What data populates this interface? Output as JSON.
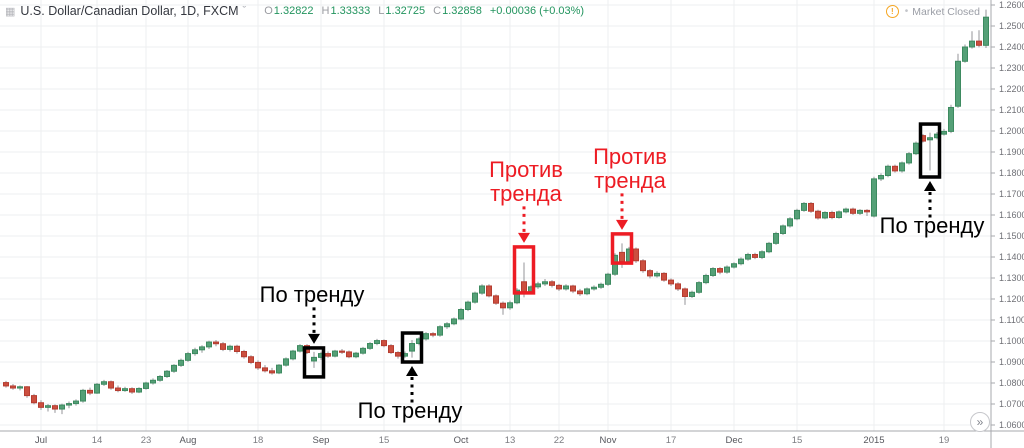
{
  "header": {
    "title": "U.S. Dollar/Canadian Dollar, 1D, FXCM",
    "ohlc": [
      {
        "label": "O",
        "value": "1.32822"
      },
      {
        "label": "H",
        "value": "1.33333"
      },
      {
        "label": "L",
        "value": "1.32725"
      },
      {
        "label": "C",
        "value": "1.32858"
      }
    ],
    "change": "+0.00036 (+0.03%)",
    "market_status": "Market Closed"
  },
  "colors": {
    "up": "#55a077",
    "up_border": "#3d8a60",
    "down": "#cc4f3f",
    "down_border": "#b43d31",
    "wick": "#94959a",
    "grid": "#eeeff1",
    "axis_line": "#a7a8ad",
    "axis_text": "#6f7076",
    "month_text": "#56575d",
    "day_text": "#7c7d82",
    "quote_green": "#22945e",
    "annotation_red": "#ed1c24",
    "annotation_black": "#000000",
    "market_warn": "#f5a623"
  },
  "footer": {
    "scroll_icon": "»"
  },
  "chart_data": {
    "type": "candlestick",
    "title": "U.S. Dollar/Canadian Dollar, 1D, FXCM",
    "symbol": "U.S. Dollar/Canadian Dollar",
    "interval": "1D",
    "exchange": "FXCM",
    "y_axis": {
      "min": 1.06,
      "max": 1.26,
      "step": 0.01,
      "labels": [
        "1.26000",
        "1.25000",
        "1.24000",
        "1.23000",
        "1.22000",
        "1.21000",
        "1.20000",
        "1.19000",
        "1.18000",
        "1.17000",
        "1.16000",
        "1.15000",
        "1.14000",
        "1.13000",
        "1.12000",
        "1.11000",
        "1.10000",
        "1.09000",
        "1.08000",
        "1.07000",
        "1.06000"
      ]
    },
    "x_ticks": [
      {
        "index": 5,
        "label": "Jul",
        "kind": "major"
      },
      {
        "index": 13,
        "label": "14",
        "kind": "day"
      },
      {
        "index": 20,
        "label": "23",
        "kind": "day"
      },
      {
        "index": 26,
        "label": "Aug",
        "kind": "major"
      },
      {
        "index": 36,
        "label": "18",
        "kind": "day"
      },
      {
        "index": 45,
        "label": "Sep",
        "kind": "major"
      },
      {
        "index": 54,
        "label": "15",
        "kind": "day"
      },
      {
        "index": 65,
        "label": "Oct",
        "kind": "major"
      },
      {
        "index": 72,
        "label": "13",
        "kind": "day"
      },
      {
        "index": 79,
        "label": "22",
        "kind": "day"
      },
      {
        "index": 86,
        "label": "Nov",
        "kind": "major"
      },
      {
        "index": 95,
        "label": "17",
        "kind": "day"
      },
      {
        "index": 104,
        "label": "Dec",
        "kind": "major"
      },
      {
        "index": 113,
        "label": "15",
        "kind": "day"
      },
      {
        "index": 124,
        "label": "2015",
        "kind": "major"
      },
      {
        "index": 134,
        "label": "19",
        "kind": "day"
      }
    ],
    "candles": [
      [
        1.0802,
        1.081,
        1.0778,
        1.0786
      ],
      [
        1.0786,
        1.0795,
        1.0768,
        1.0776
      ],
      [
        1.0776,
        1.0788,
        1.0765,
        1.0782
      ],
      [
        1.0782,
        1.0785,
        1.073,
        1.074
      ],
      [
        1.074,
        1.0748,
        1.0698,
        1.0706
      ],
      [
        1.0706,
        1.0718,
        1.0672,
        1.0684
      ],
      [
        1.0684,
        1.07,
        1.0664,
        1.0692
      ],
      [
        1.0692,
        1.0698,
        1.0658,
        1.0676
      ],
      [
        1.0676,
        1.0702,
        1.0652,
        1.0695
      ],
      [
        1.0695,
        1.0712,
        1.068,
        1.0702
      ],
      [
        1.0702,
        1.0722,
        1.0692,
        1.0714
      ],
      [
        1.0714,
        1.0772,
        1.0706,
        1.0765
      ],
      [
        1.0765,
        1.0778,
        1.0742,
        1.0752
      ],
      [
        1.0752,
        1.08,
        1.0748,
        1.0794
      ],
      [
        1.0794,
        1.0815,
        1.0786,
        1.0806
      ],
      [
        1.0806,
        1.0812,
        1.0768,
        1.0776
      ],
      [
        1.0776,
        1.0788,
        1.0756,
        1.0764
      ],
      [
        1.0764,
        1.0782,
        1.0758,
        1.0773
      ],
      [
        1.0773,
        1.078,
        1.0748,
        1.0757
      ],
      [
        1.0757,
        1.078,
        1.0752,
        1.0774
      ],
      [
        1.0774,
        1.0806,
        1.0768,
        1.08
      ],
      [
        1.08,
        1.0822,
        1.0792,
        1.0813
      ],
      [
        1.0813,
        1.0838,
        1.0806,
        1.0831
      ],
      [
        1.0831,
        1.0862,
        1.0824,
        1.0856
      ],
      [
        1.0856,
        1.089,
        1.0848,
        1.0884
      ],
      [
        1.0884,
        1.0916,
        1.0876,
        1.0908
      ],
      [
        1.0908,
        1.0948,
        1.09,
        1.094
      ],
      [
        1.094,
        1.0968,
        1.093,
        1.0958
      ],
      [
        1.0958,
        1.098,
        1.0944,
        1.0972
      ],
      [
        1.0972,
        1.1002,
        1.0962,
        1.0995
      ],
      [
        1.0995,
        1.1005,
        1.0975,
        1.0987
      ],
      [
        1.0987,
        1.0995,
        1.0952,
        1.096
      ],
      [
        1.096,
        1.0982,
        1.095,
        1.0975
      ],
      [
        1.0975,
        1.0982,
        1.094,
        1.095
      ],
      [
        1.095,
        1.0958,
        1.0916,
        1.0925
      ],
      [
        1.0925,
        1.0932,
        1.089,
        1.0898
      ],
      [
        1.0898,
        1.0908,
        1.0862,
        1.0872
      ],
      [
        1.0872,
        1.0885,
        1.085,
        1.0858
      ],
      [
        1.0858,
        1.0872,
        1.084,
        1.0848
      ],
      [
        1.0848,
        1.089,
        1.0842,
        1.0885
      ],
      [
        1.0885,
        1.0922,
        1.0878,
        1.0915
      ],
      [
        1.0915,
        1.0958,
        1.0908,
        1.0952
      ],
      [
        1.0952,
        1.0985,
        1.0945,
        1.0978
      ],
      [
        1.0978,
        1.0985,
        1.0938,
        1.0945
      ],
      [
        1.0905,
        1.0948,
        1.0872,
        1.0922
      ],
      [
        1.0922,
        1.0948,
        1.091,
        1.094
      ],
      [
        1.094,
        1.095,
        1.092,
        1.0928
      ],
      [
        1.0928,
        1.0958,
        1.0922,
        1.0952
      ],
      [
        1.0952,
        1.0962,
        1.0938,
        1.0948
      ],
      [
        1.0948,
        1.0955,
        1.0918,
        1.0925
      ],
      [
        1.0925,
        1.0948,
        1.0918,
        1.0942
      ],
      [
        1.0942,
        1.0972,
        1.0935,
        1.0965
      ],
      [
        1.0965,
        1.0995,
        1.0958,
        1.0988
      ],
      [
        1.0988,
        1.101,
        1.098,
        1.1002
      ],
      [
        1.1002,
        1.1008,
        1.097,
        1.0978
      ],
      [
        1.0978,
        1.0985,
        1.0938,
        1.0945
      ],
      [
        1.0945,
        1.0952,
        1.0916,
        1.0928
      ],
      [
        1.0928,
        1.095,
        1.092,
        1.094
      ],
      [
        1.0952,
        1.1005,
        1.0921,
        1.0988
      ],
      [
        1.0988,
        1.1018,
        1.098,
        1.101
      ],
      [
        1.101,
        1.1042,
        1.1002,
        1.1035
      ],
      [
        1.1035,
        1.1042,
        1.1018,
        1.1028
      ],
      [
        1.1028,
        1.1075,
        1.102,
        1.1068
      ],
      [
        1.1068,
        1.109,
        1.1058,
        1.1082
      ],
      [
        1.1082,
        1.1112,
        1.1075,
        1.1105
      ],
      [
        1.1105,
        1.1158,
        1.1098,
        1.115
      ],
      [
        1.115,
        1.1192,
        1.1142,
        1.1185
      ],
      [
        1.1185,
        1.1235,
        1.1178,
        1.1228
      ],
      [
        1.1228,
        1.127,
        1.122,
        1.1262
      ],
      [
        1.1262,
        1.127,
        1.1208,
        1.1215
      ],
      [
        1.1215,
        1.1222,
        1.1172,
        1.118
      ],
      [
        1.118,
        1.1188,
        1.1125,
        1.1158
      ],
      [
        1.1158,
        1.1192,
        1.1148,
        1.1182
      ],
      [
        1.1182,
        1.1252,
        1.1175,
        1.1242
      ],
      [
        1.1282,
        1.1374,
        1.1208,
        1.1236
      ],
      [
        1.1236,
        1.1265,
        1.1228,
        1.1258
      ],
      [
        1.1258,
        1.1282,
        1.1248,
        1.1272
      ],
      [
        1.1272,
        1.1295,
        1.1262,
        1.1282
      ],
      [
        1.1282,
        1.129,
        1.1255,
        1.1265
      ],
      [
        1.1265,
        1.1272,
        1.1238,
        1.1248
      ],
      [
        1.1248,
        1.127,
        1.124,
        1.1262
      ],
      [
        1.1262,
        1.1268,
        1.1228,
        1.1238
      ],
      [
        1.1238,
        1.1248,
        1.1215,
        1.1225
      ],
      [
        1.1225,
        1.1255,
        1.1218,
        1.1248
      ],
      [
        1.1248,
        1.1265,
        1.124,
        1.1256
      ],
      [
        1.1256,
        1.1278,
        1.1248,
        1.127
      ],
      [
        1.127,
        1.1325,
        1.1262,
        1.1318
      ],
      [
        1.1318,
        1.1418,
        1.131,
        1.1408
      ],
      [
        1.1422,
        1.1465,
        1.1348,
        1.1378
      ],
      [
        1.1378,
        1.1448,
        1.137,
        1.1438
      ],
      [
        1.1438,
        1.1445,
        1.1372,
        1.1382
      ],
      [
        1.1382,
        1.139,
        1.1325,
        1.1335
      ],
      [
        1.1335,
        1.1342,
        1.1298,
        1.131
      ],
      [
        1.131,
        1.1332,
        1.1302,
        1.1322
      ],
      [
        1.1322,
        1.1328,
        1.1282,
        1.129
      ],
      [
        1.129,
        1.1298,
        1.1262,
        1.1272
      ],
      [
        1.1272,
        1.128,
        1.1238,
        1.1248
      ],
      [
        1.1248,
        1.1255,
        1.1172,
        1.1212
      ],
      [
        1.1212,
        1.124,
        1.1205,
        1.1232
      ],
      [
        1.1232,
        1.1285,
        1.1225,
        1.1278
      ],
      [
        1.1278,
        1.132,
        1.127,
        1.1312
      ],
      [
        1.1312,
        1.1352,
        1.1305,
        1.1345
      ],
      [
        1.1345,
        1.1352,
        1.1318,
        1.1328
      ],
      [
        1.1328,
        1.136,
        1.132,
        1.1352
      ],
      [
        1.1352,
        1.1375,
        1.1345,
        1.1368
      ],
      [
        1.1368,
        1.1398,
        1.136,
        1.139
      ],
      [
        1.139,
        1.142,
        1.1382,
        1.1412
      ],
      [
        1.1412,
        1.142,
        1.139,
        1.1398
      ],
      [
        1.1398,
        1.1432,
        1.139,
        1.1425
      ],
      [
        1.1425,
        1.1472,
        1.1418,
        1.1465
      ],
      [
        1.1465,
        1.152,
        1.1458,
        1.1512
      ],
      [
        1.1512,
        1.1555,
        1.1505,
        1.1548
      ],
      [
        1.1548,
        1.159,
        1.154,
        1.1582
      ],
      [
        1.1582,
        1.163,
        1.1575,
        1.1622
      ],
      [
        1.1622,
        1.1662,
        1.1615,
        1.1655
      ],
      [
        1.1655,
        1.1662,
        1.161,
        1.1618
      ],
      [
        1.1618,
        1.1625,
        1.1578,
        1.1586
      ],
      [
        1.1586,
        1.1618,
        1.158,
        1.1612
      ],
      [
        1.1612,
        1.162,
        1.158,
        1.1588
      ],
      [
        1.1588,
        1.1622,
        1.1582,
        1.1615
      ],
      [
        1.1615,
        1.1635,
        1.1608,
        1.1628
      ],
      [
        1.1628,
        1.1635,
        1.16,
        1.1608
      ],
      [
        1.1608,
        1.1628,
        1.16,
        1.1622
      ],
      [
        1.1622,
        1.1628,
        1.1595,
        1.1615
      ],
      [
        1.1595,
        1.1782,
        1.1588,
        1.1772
      ],
      [
        1.1772,
        1.1798,
        1.1762,
        1.1788
      ],
      [
        1.1788,
        1.184,
        1.178,
        1.1832
      ],
      [
        1.1832,
        1.184,
        1.1802,
        1.181
      ],
      [
        1.181,
        1.1855,
        1.1802,
        1.1848
      ],
      [
        1.1848,
        1.19,
        1.184,
        1.1892
      ],
      [
        1.1892,
        1.195,
        1.1885,
        1.1942
      ],
      [
        1.1978,
        1.1985,
        1.1945,
        1.1952
      ],
      [
        1.1958,
        1.1992,
        1.1812,
        1.1968
      ],
      [
        1.1968,
        1.1995,
        1.196,
        1.1985
      ],
      [
        1.1985,
        1.201,
        1.1978,
        1.1998
      ],
      [
        1.1998,
        1.2125,
        1.199,
        1.2112
      ],
      [
        1.2118,
        1.2368,
        1.211,
        1.2332
      ],
      [
        1.2332,
        1.2412,
        1.2325,
        1.24
      ],
      [
        1.24,
        1.2475,
        1.2392,
        1.2428
      ],
      [
        1.2428,
        1.248,
        1.2398,
        1.2408
      ],
      [
        1.2408,
        1.2578,
        1.2395,
        1.2542
      ]
    ],
    "annotations": [
      {
        "lines": [
          "По тренду"
        ],
        "color": "#000000",
        "index": 44,
        "box_top": 1.0967,
        "box_bottom": 1.0829,
        "label_side": "above",
        "dx": -2
      },
      {
        "lines": [
          "По тренду"
        ],
        "color": "#000000",
        "index": 58,
        "box_top": 1.1038,
        "box_bottom": 1.09,
        "label_side": "below",
        "dx": -2
      },
      {
        "lines": [
          "Против",
          "тренда"
        ],
        "color": "#ed1c24",
        "index": 74,
        "box_top": 1.1448,
        "box_bottom": 1.1229,
        "label_side": "above",
        "dx": 2
      },
      {
        "lines": [
          "Против",
          "тренда"
        ],
        "color": "#ed1c24",
        "index": 88,
        "box_top": 1.151,
        "box_bottom": 1.1371,
        "label_side": "above",
        "dx": 8
      },
      {
        "lines": [
          "По тренду"
        ],
        "color": "#000000",
        "index": 132,
        "box_top": 1.2033,
        "box_bottom": 1.1781,
        "label_side": "below",
        "dx": 2
      }
    ]
  }
}
